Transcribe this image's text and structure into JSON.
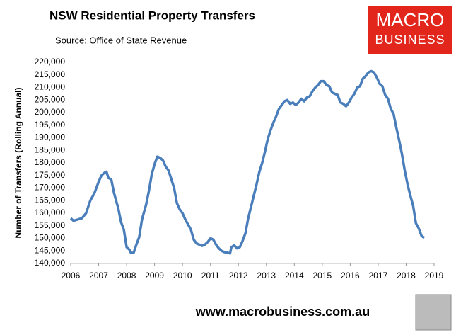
{
  "chart_data": {
    "type": "line",
    "title": "NSW Residential Property Transfers",
    "subtitle": "Source: Office of State Revenue",
    "y_label": "Number of Transfers (Rolling Annual)",
    "logo": [
      "MACRO",
      "BUSINESS"
    ],
    "footer": "www.macrobusiness.com.au",
    "xlim": [
      2006,
      2019
    ],
    "xticks": [
      2006,
      2007,
      2008,
      2009,
      2010,
      2011,
      2012,
      2013,
      2014,
      2015,
      2016,
      2017,
      2018,
      2019
    ],
    "ylim": [
      140000,
      220000
    ],
    "yticks": [
      {
        "value": 140000,
        "label": "140,000"
      },
      {
        "value": 145000,
        "label": "145,000"
      },
      {
        "value": 150000,
        "label": "150,000"
      },
      {
        "value": 155000,
        "label": "155,000"
      },
      {
        "value": 160000,
        "label": "160,000"
      },
      {
        "value": 165000,
        "label": "165,000"
      },
      {
        "value": 170000,
        "label": "170,000"
      },
      {
        "value": 175000,
        "label": "175,000"
      },
      {
        "value": 180000,
        "label": "180,000"
      },
      {
        "value": 185000,
        "label": "185,000"
      },
      {
        "value": 190000,
        "label": "190,000"
      },
      {
        "value": 195000,
        "label": "195,000"
      },
      {
        "value": 200000,
        "label": "200,000"
      },
      {
        "value": 205000,
        "label": "205,000"
      },
      {
        "value": 210000,
        "label": "210,000"
      },
      {
        "value": 215000,
        "label": "215,000"
      },
      {
        "value": 220000,
        "label": "220,000"
      }
    ],
    "grid": false,
    "x": [
      2006.0,
      2006.1,
      2006.25,
      2006.4,
      2006.55,
      2006.7,
      2006.85,
      2007.0,
      2007.1,
      2007.2,
      2007.28,
      2007.35,
      2007.45,
      2007.55,
      2007.7,
      2007.8,
      2007.9,
      2008.0,
      2008.1,
      2008.15,
      2008.25,
      2008.35,
      2008.45,
      2008.55,
      2008.7,
      2008.8,
      2008.9,
      2009.0,
      2009.1,
      2009.2,
      2009.3,
      2009.4,
      2009.5,
      2009.6,
      2009.7,
      2009.8,
      2009.9,
      2010.0,
      2010.1,
      2010.2,
      2010.3,
      2010.4,
      2010.5,
      2010.6,
      2010.7,
      2010.8,
      2010.9,
      2011.0,
      2011.1,
      2011.2,
      2011.3,
      2011.4,
      2011.5,
      2011.6,
      2011.7,
      2011.75,
      2011.85,
      2011.95,
      2012.05,
      2012.15,
      2012.25,
      2012.35,
      2012.45,
      2012.55,
      2012.65,
      2012.75,
      2012.85,
      2012.95,
      2013.05,
      2013.15,
      2013.25,
      2013.35,
      2013.45,
      2013.55,
      2013.65,
      2013.75,
      2013.85,
      2013.95,
      2014.05,
      2014.15,
      2014.25,
      2014.35,
      2014.45,
      2014.55,
      2014.65,
      2014.75,
      2014.85,
      2014.95,
      2015.05,
      2015.15,
      2015.25,
      2015.35,
      2015.45,
      2015.55,
      2015.65,
      2015.75,
      2015.85,
      2015.95,
      2016.05,
      2016.15,
      2016.25,
      2016.35,
      2016.45,
      2016.55,
      2016.65,
      2016.75,
      2016.85,
      2016.95,
      2017.05,
      2017.15,
      2017.25,
      2017.35,
      2017.45,
      2017.55,
      2017.65,
      2017.75,
      2017.85,
      2017.95,
      2018.05,
      2018.15,
      2018.25,
      2018.35,
      2018.45,
      2018.55,
      2018.65
    ],
    "series": [
      {
        "name": "Transfers",
        "color": "#4a7ebb",
        "values": [
          158000,
          157000,
          157500,
          158000,
          160000,
          165000,
          168000,
          172500,
          175000,
          176000,
          176500,
          174000,
          173500,
          168000,
          162000,
          156500,
          153500,
          146500,
          145500,
          144300,
          144200,
          147500,
          150500,
          157500,
          163500,
          169000,
          175500,
          179500,
          182500,
          182000,
          181000,
          178500,
          177000,
          173500,
          170000,
          164000,
          161500,
          160000,
          157500,
          155500,
          153500,
          149500,
          148000,
          147500,
          147000,
          147500,
          148500,
          150000,
          149500,
          147500,
          146000,
          145000,
          144500,
          144300,
          144000,
          146500,
          147200,
          146000,
          146500,
          149000,
          152000,
          158000,
          162500,
          167000,
          171500,
          176500,
          180000,
          184500,
          189500,
          193000,
          196000,
          198500,
          201500,
          203000,
          204500,
          205000,
          203500,
          204000,
          203000,
          204000,
          205500,
          204500,
          206000,
          206500,
          208500,
          210000,
          211000,
          212500,
          212500,
          211000,
          210500,
          208000,
          207500,
          207000,
          204000,
          203500,
          202500,
          204000,
          206000,
          207500,
          210000,
          210500,
          213500,
          214500,
          216000,
          216500,
          216000,
          214000,
          211500,
          210500,
          207000,
          205500,
          201500,
          199500,
          194000,
          189000,
          183500,
          177000,
          171500,
          167000,
          163000,
          156000,
          154000,
          151000,
          150200
        ]
      }
    ]
  }
}
